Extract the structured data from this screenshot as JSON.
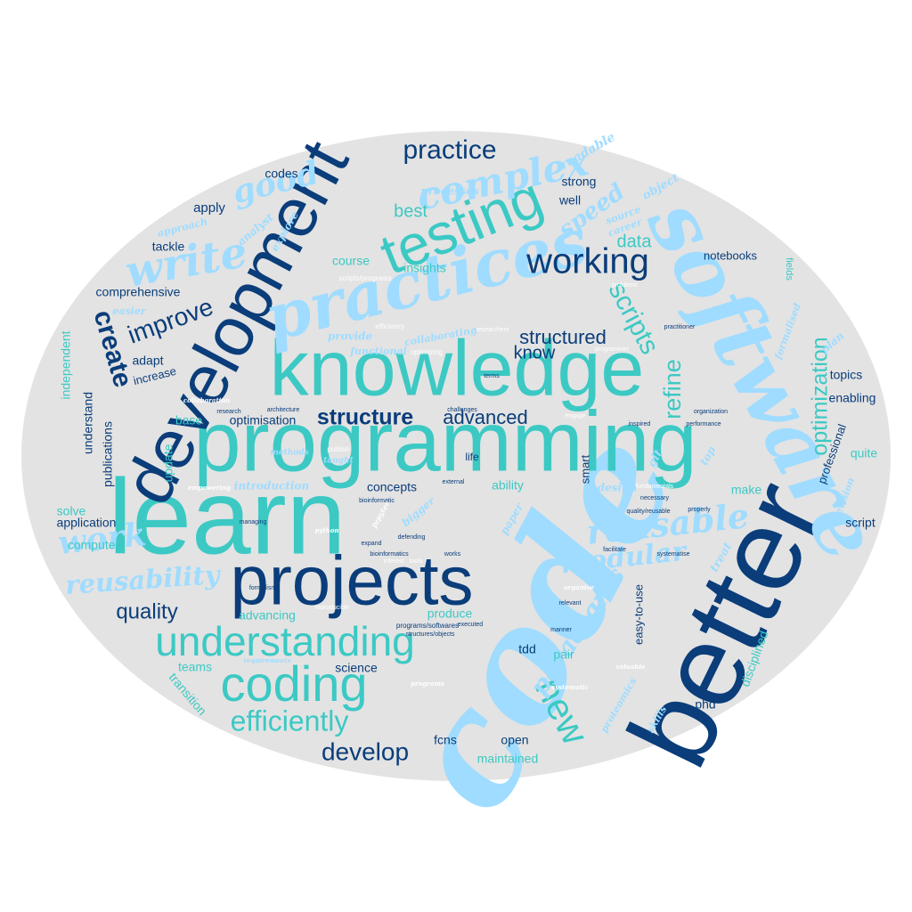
{
  "colors": {
    "background": "#ffffff",
    "ellipse": "#e3e3e3",
    "navy": "#0a3d7a",
    "teal": "#3cc9c4",
    "sky": "#9fdcff"
  },
  "words": {
    "code": "code",
    "better": "better",
    "software": "software",
    "learn": "learn",
    "programming": "programming",
    "development": "development",
    "knowledge": "knowledge",
    "practices": "practices",
    "projects": "projects",
    "testing": "testing",
    "understanding": "understanding",
    "coding": "coding",
    "write": "write",
    "working": "working",
    "practice": "practice",
    "complex": "complex",
    "good": "good",
    "structure": "structure",
    "advanced": "advanced",
    "work": "work",
    "reusable": "reusable",
    "efficiently": "efficiently",
    "new": "new",
    "develop": "develop",
    "scripts": "scripts",
    "create": "create",
    "improve": "improve",
    "optimization": "optimization",
    "refine": "refine",
    "modular": "modular",
    "reusability": "reusability",
    "quality": "quality",
    "paradigms": "paradigms",
    "structured": "structured",
    "know": "know",
    "speed": "speed",
    "best": "best",
    "data": "data",
    "readable": "readable",
    "codes": "codes",
    "apply": "apply",
    "approach": "approach",
    "tackle": "tackle",
    "analyst": "analyst",
    "explore": "explore",
    "processes": "processes",
    "strong": "strong",
    "well": "well",
    "object": "object",
    "source": "source",
    "career": "career",
    "course": "course",
    "insights": "insights",
    "comprehensive": "comprehensive",
    "easier": "easier",
    "provide": "provide",
    "functional": "functional",
    "collaborating": "collaborating",
    "efficiency": "efficiency",
    "optimizing": "optimizing",
    "scripts/programs": "scripts/programs",
    "problems": "problems",
    "researchers": "researchers",
    "programmer": "programmer",
    "practitioner": "practitioner",
    "notebooks": "notebooks",
    "fields": "fields",
    "formalised": "formalised",
    "plan": "plan",
    "adapt": "adapt",
    "increase": "increase",
    "terms": "terms",
    "topics": "topics",
    "enabling": "enabling",
    "independent": "independent",
    "understand": "understand",
    "publications": "publications",
    "base": "base",
    "optimisation": "optimisation",
    "research": "research",
    "architecture": "architecture",
    "collaboration": "collaboration",
    "challenges": "challenges",
    "engage": "engage",
    "inspired": "inspired",
    "organization": "organization",
    "performance": "performance",
    "professional": "professional",
    "quite": "quite",
    "update": "update",
    "publish": "publish",
    "methods": "methods",
    "taught": "taught",
    "git": "git",
    "smart": "smart",
    "top": "top",
    "revision": "revision",
    "life": "life",
    "introduction": "introduction",
    "empowering": "empowering",
    "concepts": "concepts",
    "ability": "ability",
    "design": "design",
    "fundamentals": "fundamentals",
    "bioinformatic": "bioinformatic",
    "external": "external",
    "necessary": "necessary",
    "quality/reusable": "quality/reusable",
    "properly": "properly",
    "make": "make",
    "script": "script",
    "solve": "solve",
    "application": "application",
    "managing": "managing",
    "python": "python",
    "jupyter": "jupyter",
    "bigger": "bigger",
    "paper": "paper",
    "computer": "computer",
    "expand": "expand",
    "bioinformatics": "bioinformatics",
    "defending": "defending",
    "interest": "interest",
    "tools": "tools",
    "works": "works",
    "facilitate": "facilitate",
    "systematise": "systematise",
    "treat": "treat",
    "formalism": "formalism",
    "organise": "organise",
    "relevant": "relevant",
    "advancing": "advancing",
    "produce": "produce",
    "programs/softwares": "programs/softwares",
    "executed": "executed",
    "structures/objects": "structures/objects",
    "easy-to-use": "easy-to-use",
    "requirements": "requirements",
    "teams": "teams",
    "science": "science",
    "pair": "pair",
    "tdd": "tdd",
    "transition": "transition",
    "disciplined": "disciplined",
    "manner": "manner",
    "programs": "programs",
    "systematic": "systematic",
    "proteomics": "proteomics",
    "skills": "skills",
    "valuable": "valuable",
    "phd": "phd",
    "open": "open",
    "fcns": "fcns",
    "maintained": "maintained",
    "reproducible": "reproducible"
  }
}
